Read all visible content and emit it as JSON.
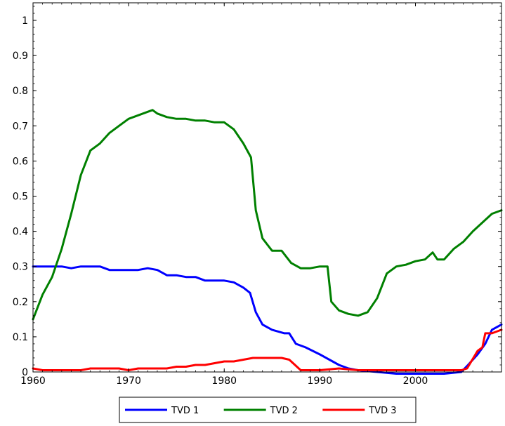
{
  "chart_data": {
    "type": "line",
    "title": "",
    "xlabel": "",
    "ylabel": "",
    "xlim": [
      1960,
      2009
    ],
    "ylim": [
      0,
      1.05
    ],
    "xticks": [
      1960,
      1970,
      1980,
      1990,
      2000
    ],
    "yticks": [
      0,
      0.1,
      0.2,
      0.3,
      0.4,
      0.5,
      0.6,
      0.7,
      0.8,
      0.9,
      1
    ],
    "grid": false,
    "legend": {
      "placement": "bottom-center-outside",
      "entries": [
        "TVD 1",
        "TVD 2",
        "TVD 3"
      ]
    },
    "series": [
      {
        "name": "TVD 1",
        "color": "#0000ff",
        "x": [
          1960,
          1961,
          1962,
          1963,
          1964,
          1965,
          1966,
          1967,
          1968,
          1969,
          1970,
          1971,
          1972,
          1973,
          1974,
          1975,
          1976,
          1977,
          1978,
          1979,
          1980,
          1981,
          1982,
          1982.7,
          1983.3,
          1984,
          1985,
          1986.3,
          1986.8,
          1987.5,
          1988.5,
          1990,
          1991,
          1992,
          1993,
          1994,
          1996,
          1998,
          2000,
          2003,
          2004.8,
          2005.5,
          2006.5,
          2007.3,
          2008,
          2009
        ],
        "y": [
          0.3,
          0.3,
          0.3,
          0.3,
          0.295,
          0.3,
          0.3,
          0.3,
          0.29,
          0.29,
          0.29,
          0.29,
          0.295,
          0.29,
          0.275,
          0.275,
          0.27,
          0.27,
          0.26,
          0.26,
          0.26,
          0.255,
          0.24,
          0.225,
          0.17,
          0.135,
          0.12,
          0.11,
          0.11,
          0.08,
          0.07,
          0.05,
          0.035,
          0.02,
          0.01,
          0.005,
          0.0,
          -0.005,
          -0.005,
          -0.005,
          0.0,
          0.02,
          0.05,
          0.08,
          0.12,
          0.135
        ]
      },
      {
        "name": "TVD 2",
        "color": "#008000",
        "x": [
          1960,
          1961,
          1962,
          1963,
          1964,
          1965,
          1966,
          1967,
          1968,
          1969,
          1970,
          1971,
          1972,
          1972.5,
          1973,
          1974,
          1975,
          1976,
          1977,
          1978,
          1979,
          1980,
          1981,
          1982,
          1982.8,
          1983.3,
          1984,
          1985,
          1986,
          1987,
          1988,
          1989,
          1990,
          1990.8,
          1991.2,
          1992,
          1993,
          1994,
          1995,
          1996,
          1997,
          1998,
          1999,
          2000,
          2001,
          2001.8,
          2002.3,
          2003,
          2004,
          2005,
          2006,
          2007,
          2008,
          2009
        ],
        "y": [
          0.15,
          0.22,
          0.27,
          0.35,
          0.45,
          0.56,
          0.63,
          0.65,
          0.68,
          0.7,
          0.72,
          0.73,
          0.74,
          0.745,
          0.735,
          0.725,
          0.72,
          0.72,
          0.715,
          0.715,
          0.71,
          0.71,
          0.69,
          0.65,
          0.61,
          0.46,
          0.38,
          0.345,
          0.345,
          0.31,
          0.295,
          0.295,
          0.3,
          0.3,
          0.2,
          0.175,
          0.165,
          0.16,
          0.17,
          0.21,
          0.28,
          0.3,
          0.305,
          0.315,
          0.32,
          0.34,
          0.32,
          0.32,
          0.35,
          0.37,
          0.4,
          0.425,
          0.45,
          0.46
        ]
      },
      {
        "name": "TVD 3",
        "color": "#ff0000",
        "x": [
          1960,
          1961,
          1962,
          1963,
          1964,
          1965,
          1966,
          1967,
          1968,
          1969,
          1970,
          1971,
          1972,
          1973,
          1974,
          1975,
          1976,
          1977,
          1978,
          1979,
          1980,
          1981,
          1982,
          1983,
          1984,
          1985,
          1986,
          1986.8,
          1987.4,
          1988,
          1990,
          1992,
          1994,
          1996,
          1998,
          2000,
          2003,
          2004.8,
          2005.4,
          2006.5,
          2007,
          2007.3,
          2008,
          2009
        ],
        "y": [
          0.01,
          0.005,
          0.005,
          0.005,
          0.005,
          0.005,
          0.01,
          0.01,
          0.01,
          0.01,
          0.005,
          0.01,
          0.01,
          0.01,
          0.01,
          0.015,
          0.015,
          0.02,
          0.02,
          0.025,
          0.03,
          0.03,
          0.035,
          0.04,
          0.04,
          0.04,
          0.04,
          0.035,
          0.02,
          0.005,
          0.005,
          0.01,
          0.005,
          0.005,
          0.005,
          0.005,
          0.005,
          0.005,
          0.01,
          0.06,
          0.07,
          0.11,
          0.11,
          0.12
        ]
      }
    ]
  }
}
